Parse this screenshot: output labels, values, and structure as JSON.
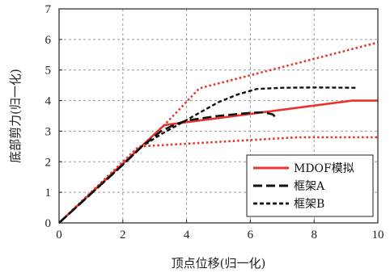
{
  "chart_data": {
    "type": "line",
    "title": "",
    "xlabel": "顶点位移(归一化)",
    "ylabel": "底部剪力(归一化)",
    "xlim": [
      0,
      10
    ],
    "ylim": [
      0,
      7
    ],
    "x_ticks": [
      "0",
      "2",
      "4",
      "6",
      "8",
      "10"
    ],
    "y_ticks": [
      "0",
      "1",
      "2",
      "3",
      "4",
      "5",
      "6",
      "7"
    ],
    "grid": true,
    "legend_position": "bottom-right",
    "colors": {
      "red": "#e8322d",
      "black": "#111111"
    },
    "series": [
      {
        "name": "MDOF模拟",
        "style": "solid",
        "color": "#e8322d",
        "points": [
          [
            0,
            0
          ],
          [
            3.3,
            3.2
          ],
          [
            9.2,
            4.0
          ],
          [
            10,
            4.0
          ]
        ]
      },
      {
        "name": "",
        "style": "dotted",
        "color": "#e8322d",
        "points": [
          [
            0,
            0
          ],
          [
            3.3,
            3.2
          ],
          [
            4.4,
            4.4
          ],
          [
            10,
            5.9
          ]
        ]
      },
      {
        "name": "",
        "style": "dotted",
        "color": "#e8322d",
        "points": [
          [
            0,
            0
          ],
          [
            2.5,
            2.5
          ],
          [
            7.5,
            2.8
          ],
          [
            10,
            2.8
          ]
        ]
      },
      {
        "name": "框架A",
        "style": "dashed",
        "color": "#111111",
        "points": [
          [
            0,
            0
          ],
          [
            1.0,
            0.95
          ],
          [
            2.0,
            1.9
          ],
          [
            2.6,
            2.5
          ],
          [
            3.2,
            3.0
          ],
          [
            3.6,
            3.2
          ],
          [
            4.0,
            3.35
          ],
          [
            5.0,
            3.5
          ],
          [
            6.0,
            3.6
          ],
          [
            6.4,
            3.62
          ],
          [
            6.7,
            3.55
          ],
          [
            6.85,
            3.4
          ]
        ]
      },
      {
        "name": "框架B",
        "style": "dashed-fine",
        "color": "#111111",
        "points": [
          [
            0,
            0
          ],
          [
            1.0,
            0.95
          ],
          [
            2.0,
            1.9
          ],
          [
            2.6,
            2.5
          ],
          [
            3.2,
            2.9
          ],
          [
            3.8,
            3.25
          ],
          [
            4.4,
            3.6
          ],
          [
            5.0,
            3.95
          ],
          [
            5.6,
            4.2
          ],
          [
            6.2,
            4.38
          ],
          [
            7.0,
            4.42
          ],
          [
            8.0,
            4.43
          ],
          [
            9.3,
            4.42
          ]
        ]
      }
    ]
  }
}
